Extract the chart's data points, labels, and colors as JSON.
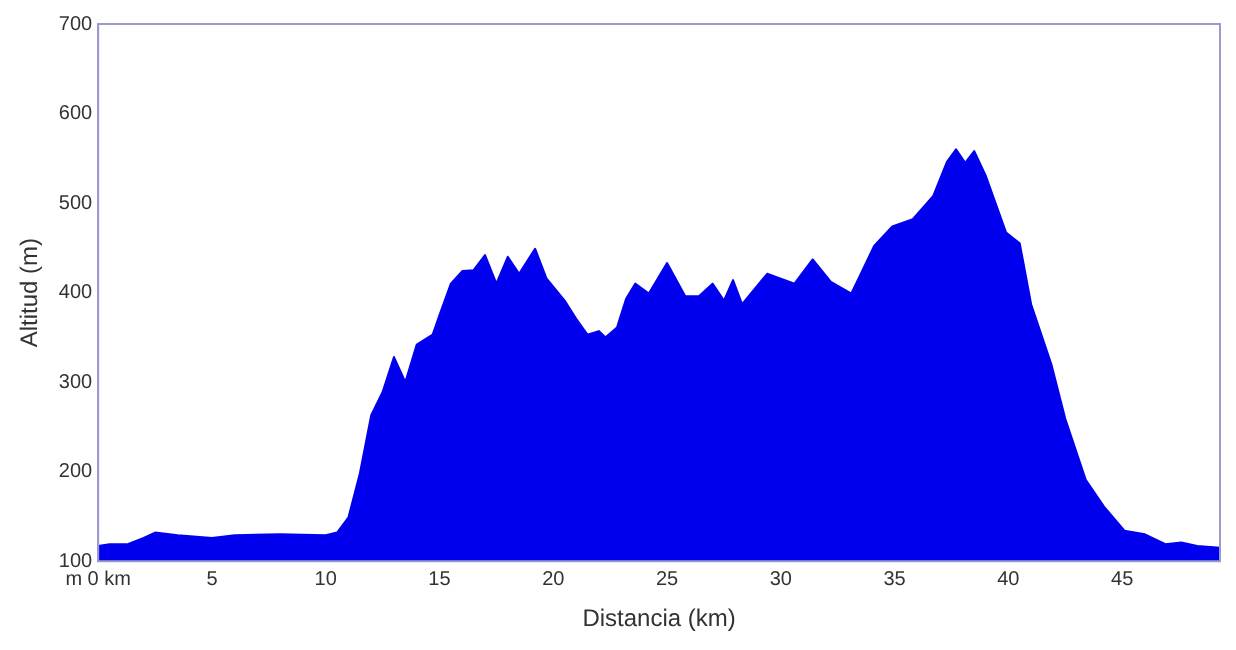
{
  "chart_data": {
    "type": "area",
    "xlabel": "Distancia (km)",
    "ylabel": "Altitud (m)",
    "x": [
      0,
      0.5,
      1.3,
      2,
      2.5,
      3.5,
      5,
      6,
      8,
      10,
      10.5,
      11,
      11.5,
      12,
      12.5,
      13,
      13.5,
      14,
      14.7,
      15,
      15.5,
      16,
      16.5,
      17,
      17.5,
      18,
      18.5,
      19.2,
      19.7,
      20.5,
      21,
      21.5,
      22,
      22.3,
      22.8,
      23.2,
      23.6,
      24.2,
      25,
      25.8,
      26.4,
      27,
      27.5,
      27.9,
      28.3,
      29.4,
      30.6,
      31.4,
      32.2,
      33.1,
      34.1,
      34.9,
      35.8,
      36.7,
      37.3,
      37.7,
      38.1,
      38.5,
      39,
      39.9,
      40.5,
      41,
      41.9,
      42.5,
      43.4,
      44.2,
      45.1,
      46,
      46.9,
      47.6,
      48.3,
      49.3
    ],
    "series": [
      {
        "color": "#0000ee",
        "values": [
          117,
          119,
          119,
          126,
          132,
          129,
          126,
          129,
          130,
          129,
          132,
          149,
          198,
          263,
          289,
          328,
          300,
          342,
          353,
          375,
          410,
          424,
          425,
          442,
          410,
          440,
          421,
          449,
          416,
          391,
          371,
          353,
          357,
          350,
          361,
          393,
          410,
          399,
          433,
          396,
          396,
          410,
          391,
          414,
          387,
          421,
          410,
          437,
          412,
          399,
          452,
          474,
          482,
          508,
          546,
          560,
          545,
          558,
          531,
          467,
          455,
          387,
          319,
          259,
          191,
          161,
          134,
          130,
          119,
          121,
          117,
          115
        ]
      }
    ],
    "xlim": [
      0,
      49.3
    ],
    "xticks": [
      {
        "value": 0,
        "label": "m 0 km"
      },
      5,
      10,
      15,
      20,
      25,
      30,
      35,
      40,
      45
    ],
    "ylim": [
      100,
      700
    ],
    "yticks": [
      100,
      200,
      300,
      400,
      500,
      600,
      700
    ],
    "grid": false,
    "legend": false,
    "marker": "none"
  }
}
